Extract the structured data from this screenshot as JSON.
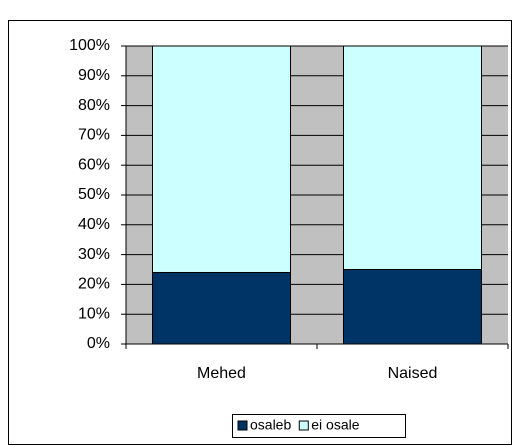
{
  "chart_data": {
    "type": "stacked_bar",
    "categories": [
      "Mehed",
      "Naised"
    ],
    "series": [
      {
        "name": "osaleb",
        "color": "#003366",
        "values": [
          24,
          25
        ]
      },
      {
        "name": "ei osale",
        "color": "#ccffff",
        "values": [
          76,
          75
        ]
      }
    ],
    "ylim": [
      0,
      100
    ],
    "yticks": [
      {
        "value": 0,
        "label": "0%"
      },
      {
        "value": 10,
        "label": "10%"
      },
      {
        "value": 20,
        "label": "20%"
      },
      {
        "value": 30,
        "label": "30%"
      },
      {
        "value": 40,
        "label": "40%"
      },
      {
        "value": 50,
        "label": "50%"
      },
      {
        "value": 60,
        "label": "60%"
      },
      {
        "value": 70,
        "label": "70%"
      },
      {
        "value": 80,
        "label": "80%"
      },
      {
        "value": 90,
        "label": "90%"
      },
      {
        "value": 100,
        "label": "100%"
      }
    ],
    "grid": true,
    "legend": "bottom",
    "plot_background": "#c0c0c0"
  }
}
